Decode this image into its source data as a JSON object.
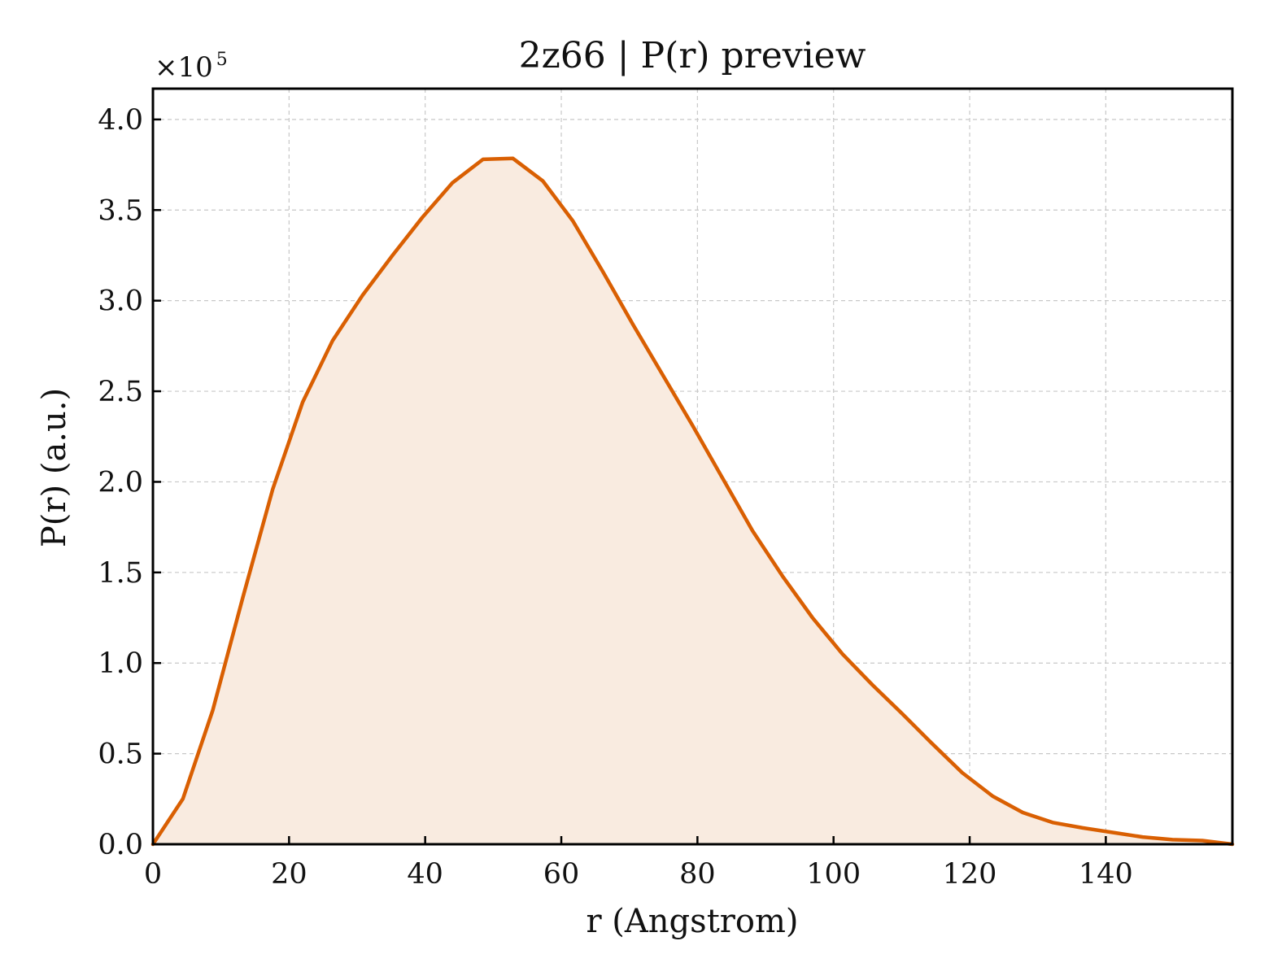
{
  "chart_data": {
    "type": "area",
    "title": "2z66 | P(r) preview",
    "xlabel": "r (Angstrom)",
    "ylabel": "P(r) (a.u.)",
    "y_multiplier_base": "×10",
    "y_multiplier_exp": "5",
    "xlim": [
      0,
      158.6
    ],
    "ylim": [
      0,
      4.17
    ],
    "x_ticks": [
      0,
      20,
      40,
      60,
      80,
      100,
      120,
      140
    ],
    "x_tick_labels": [
      "0",
      "20",
      "40",
      "60",
      "80",
      "100",
      "120",
      "140"
    ],
    "y_ticks": [
      0,
      0.5,
      1.0,
      1.5,
      2.0,
      2.5,
      3.0,
      3.5,
      4.0
    ],
    "y_tick_labels": [
      "0.0",
      "0.5",
      "1.0",
      "1.5",
      "2.0",
      "2.5",
      "3.0",
      "3.5",
      "4.0"
    ],
    "grid": true,
    "line_color": "#d95f02",
    "fill_color": "#f9ebe0",
    "series": [
      {
        "x": [
          0,
          4.4,
          8.8,
          13.2,
          17.6,
          22.0,
          26.4,
          30.8,
          35.2,
          39.6,
          44.0,
          48.5,
          52.9,
          57.3,
          61.7,
          66.1,
          70.5,
          74.9,
          79.3,
          83.7,
          88.1,
          92.5,
          96.9,
          101.3,
          105.7,
          110.1,
          114.5,
          118.9,
          123.4,
          127.8,
          132.2,
          136.6,
          141.0,
          145.4,
          149.8,
          154.2,
          158.6
        ],
        "y": [
          0.0,
          0.25,
          0.74,
          1.36,
          1.96,
          2.44,
          2.78,
          3.03,
          3.25,
          3.46,
          3.65,
          3.78,
          3.785,
          3.66,
          3.44,
          3.16,
          2.87,
          2.59,
          2.31,
          2.02,
          1.73,
          1.48,
          1.25,
          1.05,
          0.88,
          0.72,
          0.555,
          0.395,
          0.265,
          0.175,
          0.12,
          0.09,
          0.065,
          0.04,
          0.025,
          0.02,
          0.0
        ]
      }
    ]
  }
}
